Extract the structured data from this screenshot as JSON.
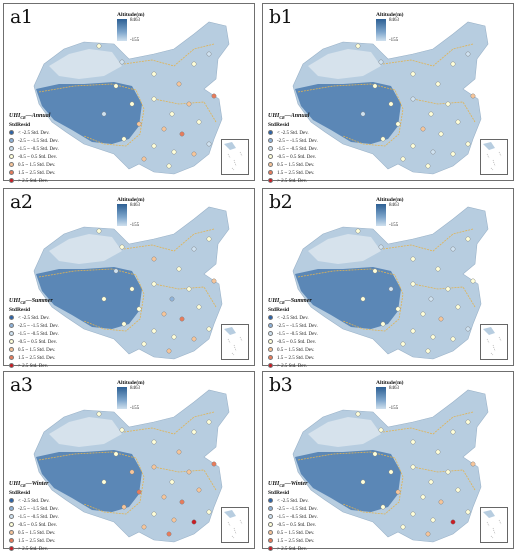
{
  "altitude": {
    "title": "Altitude(m)",
    "high": "8463",
    "low": "-155"
  },
  "legend": {
    "sublabel": "StdResid",
    "classes": [
      {
        "label": "< -2.5 Std. Dev.",
        "color": "#2c63a8"
      },
      {
        "label": "-2.5 ~ -1.5 Std. Dev.",
        "color": "#8fb3d9"
      },
      {
        "label": "-1.5 ~ -0.5 Std. Dev.",
        "color": "#cfe2f1"
      },
      {
        "label": "-0.5 ~ 0.5 Std. Dev.",
        "color": "#ffffd9"
      },
      {
        "label": "0.5 ~ 1.5 Std. Dev.",
        "color": "#f6c59a"
      },
      {
        "label": "1.5 ~ 2.5 Std. Dev.",
        "color": "#e77c5c"
      },
      {
        "label": "> 2.5 Std. Dev.",
        "color": "#c81d25"
      }
    ]
  },
  "colors": {
    "mapFill": "#b7cde0",
    "plateau": "#5b87b6",
    "basin": "#d6e2ec",
    "boundary": "#e0b354",
    "border": "#6f6f6f"
  },
  "panels": [
    {
      "label": "a1",
      "title_main": "UHI",
      "title_sub": "CR",
      "title_suffix": "Annual"
    },
    {
      "label": "b1",
      "title_main": "UHI",
      "title_sub": "CR",
      "title_suffix": "Annual"
    },
    {
      "label": "a2",
      "title_main": "UHI",
      "title_sub": "CR",
      "title_suffix": "Summer"
    },
    {
      "label": "b2",
      "title_main": "UHI",
      "title_sub": "CR",
      "title_suffix": "Summer"
    },
    {
      "label": "a3",
      "title_main": "UHI",
      "title_sub": "CR",
      "title_suffix": "Winter"
    },
    {
      "label": "b3",
      "title_main": "UHI",
      "title_sub": "CR",
      "title_suffix": "Winter"
    }
  ]
}
